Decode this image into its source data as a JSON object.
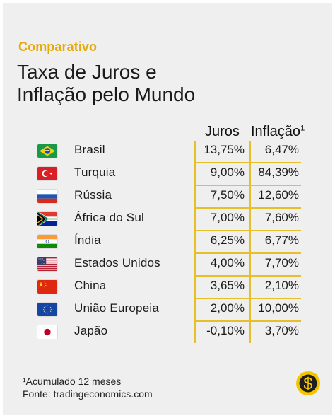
{
  "eyebrow": "Comparativo",
  "title": {
    "line1": "Taxa de Juros e",
    "line2": "Inflação pelo Mundo"
  },
  "table": {
    "headers": {
      "juros": "Juros",
      "inflacao": "Inflação",
      "inflacao_superscript": "1"
    },
    "rows": [
      {
        "country": "Brasil",
        "juros": "13,75%",
        "inflacao": "6,47%",
        "flag": "brazil-flag-icon"
      },
      {
        "country": "Turquia",
        "juros": "9,00%",
        "inflacao": "84,39%",
        "flag": "turkey-flag-icon"
      },
      {
        "country": "Rússia",
        "juros": "7,50%",
        "inflacao": "12,60%",
        "flag": "russia-flag-icon"
      },
      {
        "country": "África do Sul",
        "juros": "7,00%",
        "inflacao": "7,60%",
        "flag": "south-africa-flag-icon"
      },
      {
        "country": "Índia",
        "juros": "6,25%",
        "inflacao": "6,77%",
        "flag": "india-flag-icon"
      },
      {
        "country": "Estados Unidos",
        "juros": "4,00%",
        "inflacao": "7,70%",
        "flag": "usa-flag-icon"
      },
      {
        "country": "China",
        "juros": "3,65%",
        "inflacao": "2,10%",
        "flag": "china-flag-icon"
      },
      {
        "country": "União Europeia",
        "juros": "2,00%",
        "inflacao": "10,00%",
        "flag": "eu-flag-icon"
      },
      {
        "country": "Japão",
        "juros": "-0,10%",
        "inflacao": "3,70%",
        "flag": "japan-flag-icon"
      }
    ]
  },
  "footer": {
    "note": "¹Acumulado 12 meses",
    "source": "Fonte: tradingeconomics.com"
  },
  "colors": {
    "accent": "#e4a90d",
    "rule": "#e6bf2b",
    "background": "#efefef",
    "text": "#1a1a1a"
  },
  "logo_icon": "dollar-coin-logo-icon"
}
